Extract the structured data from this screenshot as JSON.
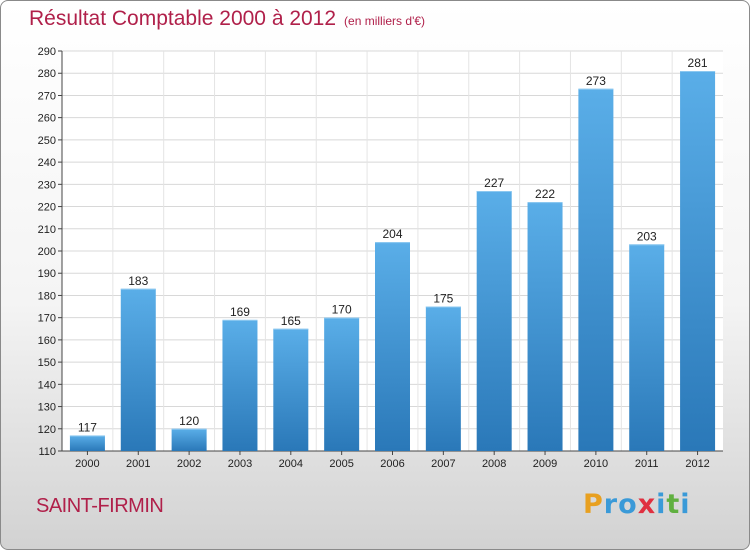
{
  "chart_data": {
    "type": "bar",
    "title": "Résultat Comptable 2000 à 2012",
    "subtitle": "(en milliers d'€)",
    "categories": [
      "2000",
      "2001",
      "2002",
      "2003",
      "2004",
      "2005",
      "2006",
      "2007",
      "2008",
      "2009",
      "2010",
      "2011",
      "2012"
    ],
    "values": [
      117,
      183,
      120,
      169,
      165,
      170,
      204,
      175,
      227,
      222,
      273,
      203,
      281
    ],
    "ylim": [
      110,
      290
    ],
    "yticks": [
      110,
      120,
      130,
      140,
      150,
      160,
      170,
      180,
      190,
      200,
      210,
      220,
      230,
      240,
      250,
      260,
      270,
      280,
      290
    ],
    "grid": true,
    "bar_color_top": "#5aaee8",
    "bar_color_bottom": "#2a78b8"
  },
  "location": "SAINT-FIRMIN",
  "logo": {
    "letters": [
      {
        "ch": "P",
        "color": "#e8a020"
      },
      {
        "ch": "r",
        "color": "#3a9ad8"
      },
      {
        "ch": "o",
        "color": "#3a9ad8"
      },
      {
        "ch": "x",
        "color": "#e03040"
      },
      {
        "ch": "i",
        "color": "#3a9ad8"
      },
      {
        "ch": "t",
        "color": "#60b040"
      },
      {
        "ch": "i",
        "color": "#3a9ad8"
      }
    ]
  }
}
